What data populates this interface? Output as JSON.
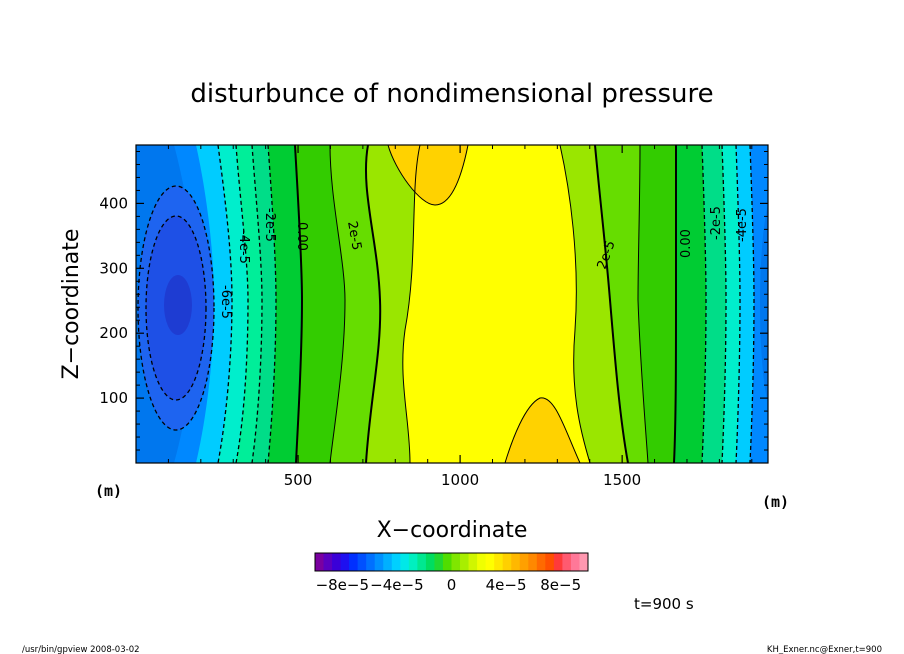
{
  "chart_data": {
    "type": "heatmap",
    "title": "disturbunce of nondimensional pressure",
    "xlabel": "X−coordinate",
    "ylabel": "Z−coordinate",
    "xunit": "(m)",
    "yunit": "(m)",
    "xlim": [
      0,
      1950
    ],
    "ylim": [
      0,
      490
    ],
    "xticks": [
      500,
      1000,
      1500
    ],
    "yticks": [
      100,
      200,
      300,
      400
    ],
    "contour_labels": [
      "-6e-5",
      "-4e-5",
      "-2e-5",
      "0.00",
      "2e-5",
      "2e-5",
      "0.00",
      "-2e-5",
      "-4e-5"
    ],
    "colorbar": {
      "min": -0.0001,
      "max": 0.0001,
      "tick_labels": [
        "−8e−5",
        "−4e−5",
        "0",
        "4e−5",
        "8e−5"
      ]
    },
    "time_label": "t=900 s"
  },
  "footer": {
    "left": "/usr/bin/gpview  2008-03-02",
    "right": "KH_Exner.nc@Exner,t=900"
  }
}
